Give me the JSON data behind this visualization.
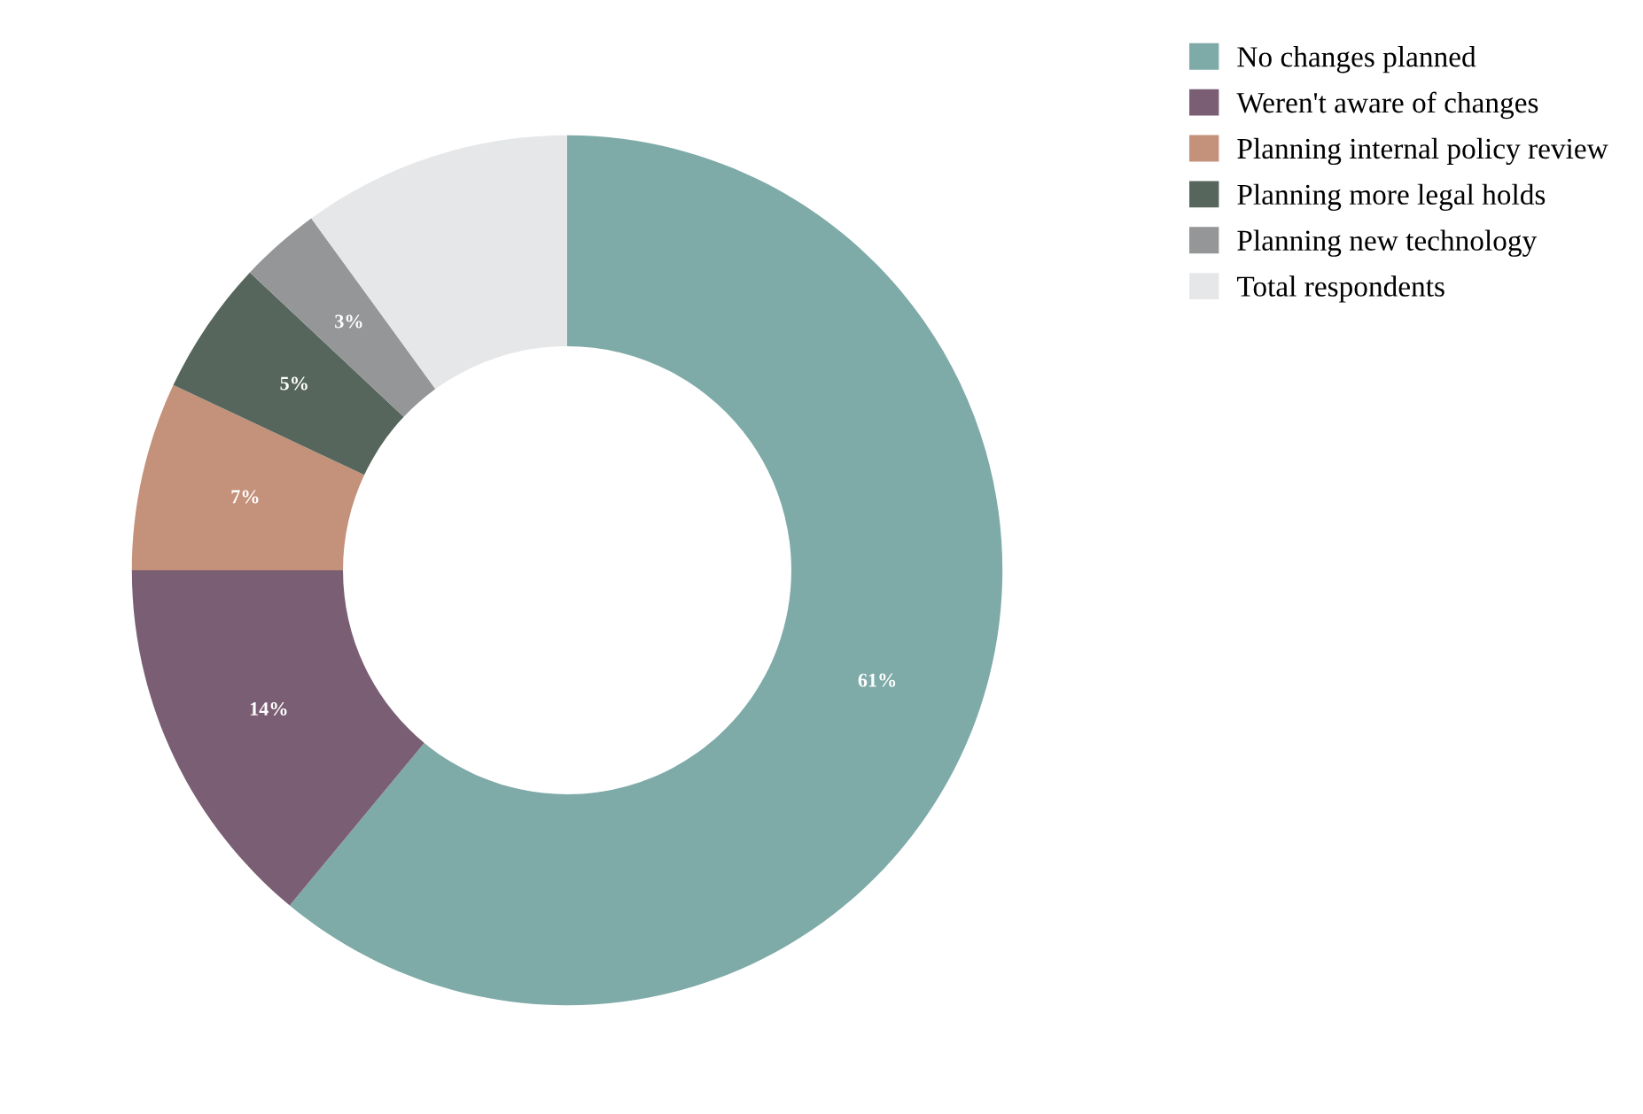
{
  "chart_data": {
    "type": "donut",
    "categories": [
      "No changes planned",
      "Weren't aware of changes",
      "Planning internal policy review",
      "Planning more legal holds",
      "Planning new technology",
      "Total respondents"
    ],
    "values": [
      61,
      14,
      7,
      5,
      3,
      10
    ],
    "colors": [
      "#7eaaa8",
      "#7a5e73",
      "#c4917a",
      "#56665c",
      "#959698",
      "#e6e7e9"
    ],
    "value_labels": [
      "61%",
      "14%",
      "7%",
      "5%",
      "3%",
      null
    ],
    "legend": "top right"
  }
}
